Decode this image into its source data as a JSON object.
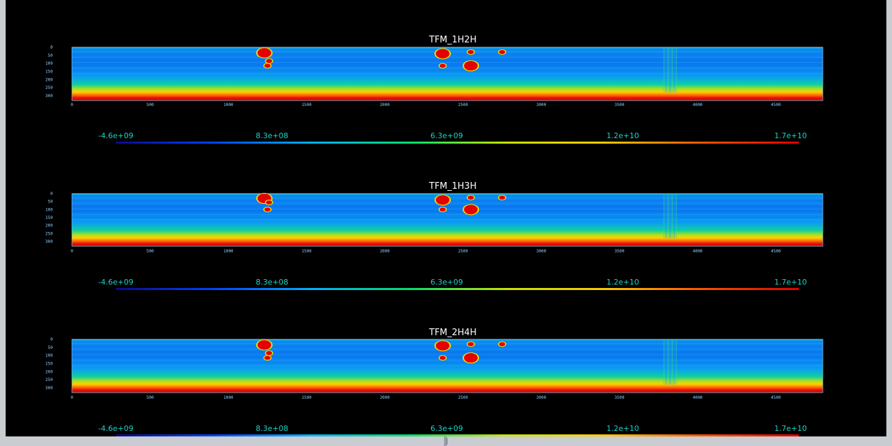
{
  "chart_data": [
    {
      "type": "heatmap",
      "title": "TFM_1H2H",
      "x_ticks": [
        "0",
        "500",
        "1000",
        "1500",
        "2000",
        "2500",
        "3000",
        "3500",
        "4000",
        "4500"
      ],
      "y_ticks": [
        "0",
        "50",
        "100",
        "150",
        "200",
        "250",
        "300"
      ],
      "xlim": [
        0,
        4800
      ],
      "ylim": [
        0,
        330
      ],
      "colorscale": [
        "#0a0a8c",
        "#0044ff",
        "#00b0ff",
        "#00e070",
        "#c8e600",
        "#ffcc00",
        "#ff5500",
        "#e00000"
      ],
      "colorbar_ticks": [
        "-4.6e+09",
        "8.3e+08",
        "6.3e+09",
        "1.2e+10",
        "1.7e+10"
      ],
      "hot_spots": [
        {
          "x": 1230,
          "y": 35
        },
        {
          "x": 1260,
          "y": 85
        },
        {
          "x": 1250,
          "y": 115
        },
        {
          "x": 2370,
          "y": 40
        },
        {
          "x": 2370,
          "y": 115
        },
        {
          "x": 2550,
          "y": 30
        },
        {
          "x": 2550,
          "y": 115
        },
        {
          "x": 2750,
          "y": 30
        }
      ],
      "vertical_artifact_x": 3820
    },
    {
      "type": "heatmap",
      "title": "TFM_1H3H",
      "x_ticks": [
        "0",
        "500",
        "1000",
        "1500",
        "2000",
        "2500",
        "3000",
        "3500",
        "4000",
        "4500"
      ],
      "y_ticks": [
        "0",
        "50",
        "100",
        "150",
        "200",
        "250",
        "300"
      ],
      "xlim": [
        0,
        4800
      ],
      "ylim": [
        0,
        330
      ],
      "colorscale": [
        "#0a0a8c",
        "#0044ff",
        "#00b0ff",
        "#00e070",
        "#c8e600",
        "#ffcc00",
        "#ff5500",
        "#e00000"
      ],
      "colorbar_ticks": [
        "-4.6e+09",
        "8.3e+08",
        "6.3e+09",
        "1.2e+10",
        "1.7e+10"
      ],
      "hot_spots": [
        {
          "x": 1230,
          "y": 30
        },
        {
          "x": 1260,
          "y": 55
        },
        {
          "x": 1250,
          "y": 100
        },
        {
          "x": 2370,
          "y": 40
        },
        {
          "x": 2370,
          "y": 100
        },
        {
          "x": 2550,
          "y": 25
        },
        {
          "x": 2550,
          "y": 100
        },
        {
          "x": 2750,
          "y": 25
        }
      ],
      "vertical_artifact_x": 3820
    },
    {
      "type": "heatmap",
      "title": "TFM_2H4H",
      "x_ticks": [
        "0",
        "500",
        "1000",
        "1500",
        "2000",
        "2500",
        "3000",
        "3500",
        "4000",
        "4500"
      ],
      "y_ticks": [
        "0",
        "50",
        "100",
        "150",
        "200",
        "250",
        "300"
      ],
      "xlim": [
        0,
        4800
      ],
      "ylim": [
        0,
        330
      ],
      "colorscale": [
        "#0a0a8c",
        "#0044ff",
        "#00b0ff",
        "#00e070",
        "#c8e600",
        "#ffcc00",
        "#ff5500",
        "#e00000"
      ],
      "colorbar_ticks": [
        "-4.6e+09",
        "8.3e+08",
        "6.3e+09",
        "1.2e+10",
        "1.7e+10"
      ],
      "hot_spots": [
        {
          "x": 1230,
          "y": 35
        },
        {
          "x": 1260,
          "y": 85
        },
        {
          "x": 1250,
          "y": 115
        },
        {
          "x": 2370,
          "y": 40
        },
        {
          "x": 2370,
          "y": 115
        },
        {
          "x": 2550,
          "y": 30
        },
        {
          "x": 2550,
          "y": 115
        },
        {
          "x": 2750,
          "y": 30
        }
      ],
      "vertical_artifact_x": 3820
    }
  ]
}
